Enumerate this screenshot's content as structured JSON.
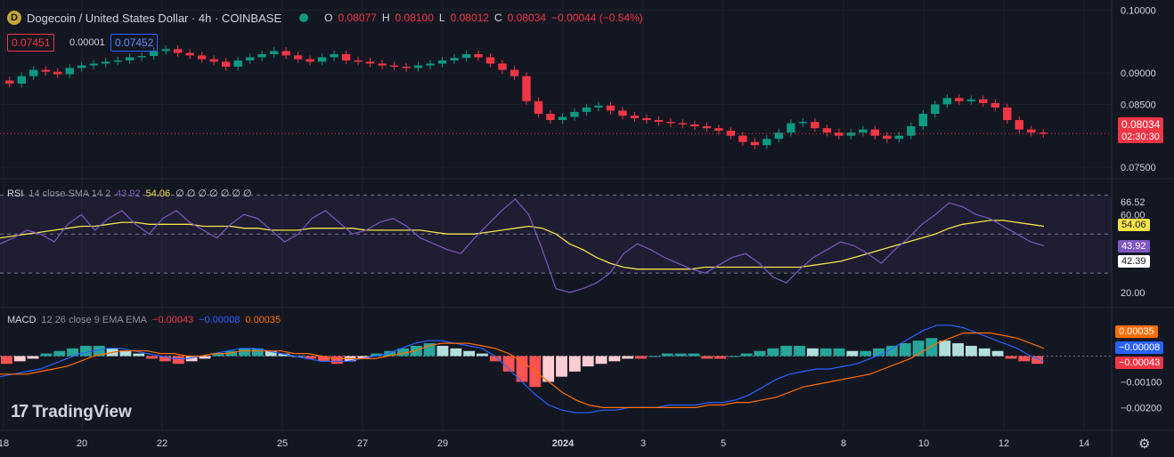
{
  "header": {
    "symbol_icon": "dogecoin-coin-icon",
    "title": "Dogecoin / United States Dollar · 4h · COINBASE",
    "open_label": "O",
    "open": "0.08077",
    "high_label": "H",
    "high": "0.08100",
    "low_label": "L",
    "low": "0.08012",
    "close_label": "C",
    "close": "0.08034",
    "change": "−0.00044 (−0.54%)",
    "sell_price": "0.07451",
    "spread": "0.00001",
    "buy_price": "0.07452"
  },
  "price_axis": {
    "ticks": [
      "0.10000",
      "0.09000",
      "0.08500",
      "0.07500"
    ],
    "last_price": "0.08034",
    "countdown": "02:30:30"
  },
  "rsi": {
    "label": "RSI",
    "params": "14 close SMA 14 2",
    "value": "43.92",
    "sma": "54.06",
    "extra": "∅ ∅ ∅ ∅ ∅ ∅ ∅",
    "axis_ticks": [
      "66.52",
      "60.00",
      "20.00"
    ],
    "tag_value": "43.92",
    "tag_sma": "54.06",
    "tag_low": "42.39"
  },
  "macd": {
    "label": "MACD",
    "params": "12 26 close 9 EMA EMA",
    "hist": "−0.00043",
    "macd_line": "−0.00008",
    "signal": "0.00035",
    "axis_ticks": [
      "0.00100",
      "−0.00100",
      "−0.00200"
    ],
    "tag_signal": "0.00035",
    "tag_macd": "−0.00008",
    "tag_hist": "−0.00043"
  },
  "time_axis": [
    "18",
    "20",
    "22",
    "25",
    "27",
    "29",
    "2024",
    "3",
    "5",
    "8",
    "10",
    "12",
    "14"
  ],
  "branding": {
    "name": "TradingView"
  },
  "colors": {
    "up": "#089981",
    "down": "#f23645",
    "rsi": "#7e57c2",
    "sma": "#f7e24a",
    "macd": "#2962ff",
    "signal": "#ff6d00"
  },
  "chart_data": {
    "type": "candlestick",
    "price_closes": [
      0.0883,
      0.0895,
      0.0905,
      0.0902,
      0.0898,
      0.0908,
      0.0912,
      0.0915,
      0.0918,
      0.092,
      0.0925,
      0.0927,
      0.0935,
      0.0938,
      0.0932,
      0.0928,
      0.0922,
      0.0918,
      0.091,
      0.092,
      0.0925,
      0.093,
      0.0935,
      0.0928,
      0.0922,
      0.0918,
      0.0925,
      0.093,
      0.092,
      0.0918,
      0.0915,
      0.0912,
      0.091,
      0.0908,
      0.0912,
      0.0915,
      0.092,
      0.0924,
      0.093,
      0.0925,
      0.0915,
      0.0905,
      0.0895,
      0.0855,
      0.0835,
      0.0825,
      0.083,
      0.0838,
      0.0845,
      0.0848,
      0.084,
      0.0832,
      0.0828,
      0.0825,
      0.0822,
      0.082,
      0.0818,
      0.0815,
      0.0812,
      0.0808,
      0.08,
      0.079,
      0.0785,
      0.0795,
      0.0805,
      0.082,
      0.0822,
      0.0812,
      0.0805,
      0.08,
      0.0805,
      0.081,
      0.08,
      0.0795,
      0.08,
      0.0815,
      0.0835,
      0.085,
      0.086,
      0.0855,
      0.0858,
      0.0852,
      0.0845,
      0.0825,
      0.081,
      0.0805,
      0.0803
    ],
    "rsi_values": [
      45,
      48,
      52,
      50,
      46,
      55,
      60,
      52,
      58,
      62,
      55,
      50,
      58,
      62,
      56,
      52,
      48,
      55,
      60,
      58,
      52,
      46,
      50,
      58,
      62,
      56,
      50,
      52,
      56,
      58,
      54,
      48,
      45,
      42,
      40,
      48,
      55,
      62,
      68,
      60,
      42,
      22,
      20,
      22,
      25,
      30,
      40,
      45,
      42,
      38,
      35,
      32,
      30,
      34,
      38,
      40,
      35,
      28,
      25,
      32,
      38,
      42,
      46,
      44,
      40,
      35,
      42,
      48,
      55,
      60,
      66,
      64,
      60,
      58,
      54,
      50,
      46,
      44
    ],
    "rsi_sma": [
      48,
      49,
      50,
      51,
      52,
      53,
      54,
      54,
      55,
      56,
      56,
      55,
      55,
      55,
      55,
      54,
      54,
      54,
      53,
      53,
      52,
      52,
      52,
      53,
      53,
      53,
      53,
      52,
      52,
      52,
      52,
      52,
      51,
      50,
      50,
      50,
      51,
      52,
      53,
      54,
      53,
      50,
      45,
      42,
      38,
      35,
      33,
      32,
      32,
      32,
      32,
      32,
      33,
      33,
      33,
      33,
      33,
      33,
      33,
      33,
      34,
      35,
      36,
      38,
      40,
      42,
      44,
      46,
      48,
      50,
      53,
      55,
      56,
      57,
      57,
      56,
      55,
      54
    ],
    "macd_hist": [
      -3,
      -2,
      -1,
      1,
      2,
      3,
      4,
      4,
      3,
      2,
      1,
      -1,
      -2,
      -3,
      -2,
      -1,
      1,
      2,
      3,
      3,
      2,
      1,
      0,
      -1,
      -2,
      -3,
      -2,
      -1,
      1,
      2,
      3,
      4,
      5,
      4,
      3,
      2,
      1,
      -2,
      -6,
      -10,
      -12,
      -10,
      -8,
      -6,
      -4,
      -3,
      -2,
      -1,
      -1,
      0,
      1,
      1,
      1,
      -1,
      -1,
      0,
      1,
      2,
      3,
      4,
      4,
      3,
      3,
      3,
      2,
      2,
      3,
      4,
      5,
      6,
      7,
      6,
      5,
      4,
      3,
      2,
      -1,
      -2,
      -3
    ],
    "macd_line": [
      -8,
      -7,
      -6,
      -5,
      -3,
      -1,
      1,
      2,
      3,
      3,
      2,
      1,
      0,
      -1,
      -1,
      0,
      1,
      2,
      3,
      3,
      2,
      1,
      0,
      -1,
      -2,
      -2,
      -2,
      -1,
      0,
      1,
      3,
      5,
      6,
      6,
      5,
      4,
      3,
      0,
      -5,
      -10,
      -15,
      -19,
      -21,
      -22,
      -22,
      -21,
      -21,
      -20,
      -20,
      -20,
      -19,
      -19,
      -19,
      -18,
      -18,
      -17,
      -15,
      -12,
      -9,
      -7,
      -6,
      -5,
      -5,
      -4,
      -3,
      -1,
      1,
      4,
      7,
      10,
      12,
      12,
      11,
      9,
      7,
      5,
      3,
      0,
      -2
    ],
    "macd_signal": [
      -7,
      -7,
      -7,
      -6,
      -5,
      -4,
      -2,
      0,
      1,
      2,
      2,
      2,
      1,
      1,
      0,
      0,
      1,
      1,
      2,
      2,
      2,
      2,
      1,
      1,
      0,
      -1,
      -1,
      -1,
      -1,
      0,
      1,
      2,
      4,
      5,
      5,
      5,
      4,
      3,
      1,
      -2,
      -6,
      -10,
      -14,
      -17,
      -19,
      -20,
      -20,
      -20,
      -20,
      -20,
      -20,
      -20,
      -20,
      -19,
      -19,
      -18,
      -18,
      -17,
      -16,
      -14,
      -12,
      -11,
      -10,
      -9,
      -8,
      -7,
      -5,
      -3,
      -1,
      2,
      5,
      7,
      9,
      9,
      9,
      8,
      7,
      5,
      3
    ]
  }
}
